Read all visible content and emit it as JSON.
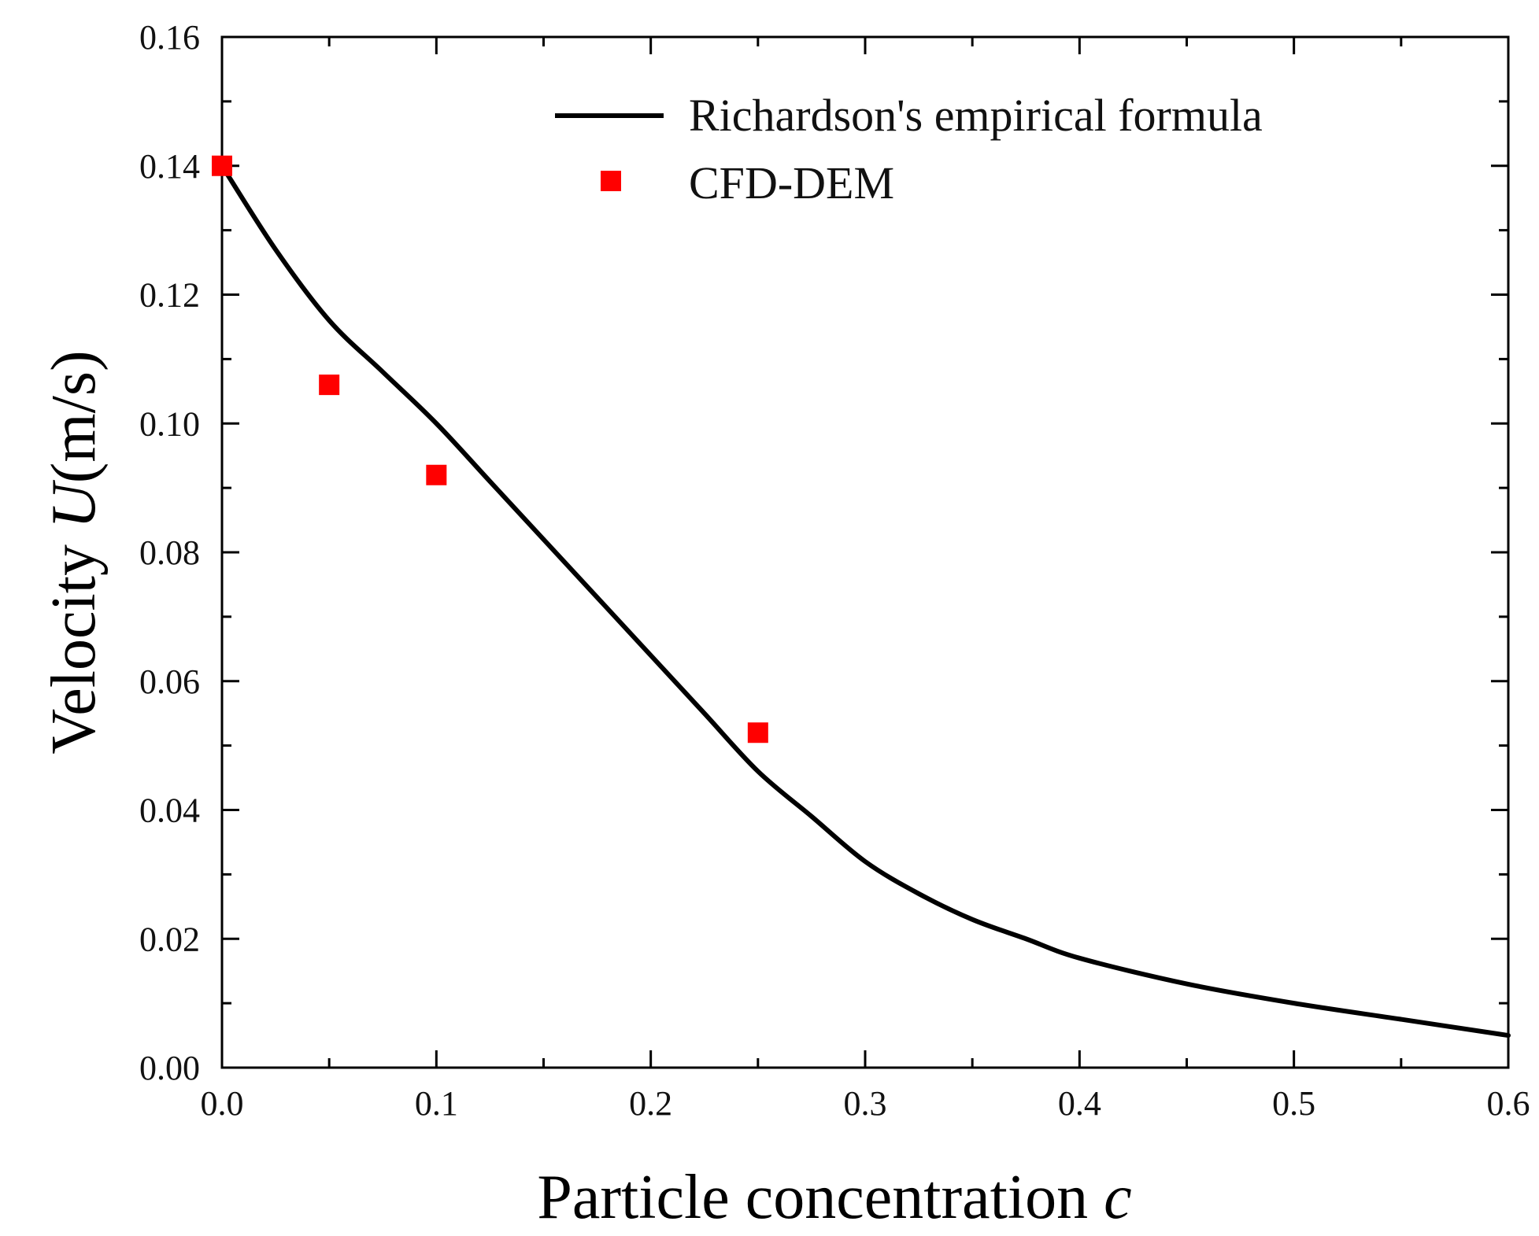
{
  "chart_data": {
    "type": "line",
    "title": "",
    "xlabel": "Particle concentration",
    "xlabel_var": "c",
    "ylabel_prefix": "Velocity",
    "ylabel_var": "U",
    "ylabel_unit": "(m/s)",
    "xlim": [
      0.0,
      0.6
    ],
    "ylim": [
      0.0,
      0.16
    ],
    "x_ticks": [
      0.0,
      0.1,
      0.2,
      0.3,
      0.4,
      0.5,
      0.6
    ],
    "x_tick_labels": [
      "0.0",
      "0.1",
      "0.2",
      "0.3",
      "0.4",
      "0.5",
      "0.6"
    ],
    "y_ticks": [
      0.0,
      0.02,
      0.04,
      0.06,
      0.08,
      0.1,
      0.12,
      0.14,
      0.16
    ],
    "y_tick_labels": [
      "0.00",
      "0.02",
      "0.04",
      "0.06",
      "0.08",
      "0.10",
      "0.12",
      "0.14",
      "0.16"
    ],
    "grid": false,
    "legend_position": "top-right",
    "series": [
      {
        "name": "Richardson's empirical formula",
        "kind": "line",
        "color": "#000000",
        "x": [
          0.0,
          0.025,
          0.05,
          0.075,
          0.1,
          0.125,
          0.15,
          0.175,
          0.2,
          0.225,
          0.25,
          0.275,
          0.3,
          0.325,
          0.35,
          0.375,
          0.4,
          0.45,
          0.5,
          0.55,
          0.6
        ],
        "y": [
          0.14,
          0.127,
          0.116,
          0.108,
          0.1,
          0.091,
          0.082,
          0.073,
          0.064,
          0.055,
          0.046,
          0.039,
          0.032,
          0.027,
          0.023,
          0.02,
          0.017,
          0.013,
          0.01,
          0.0075,
          0.005
        ]
      },
      {
        "name": "CFD-DEM",
        "kind": "scatter",
        "color": "#ff0000",
        "x": [
          0.0,
          0.05,
          0.1,
          0.25
        ],
        "y": [
          0.14,
          0.106,
          0.092,
          0.052
        ]
      }
    ]
  }
}
